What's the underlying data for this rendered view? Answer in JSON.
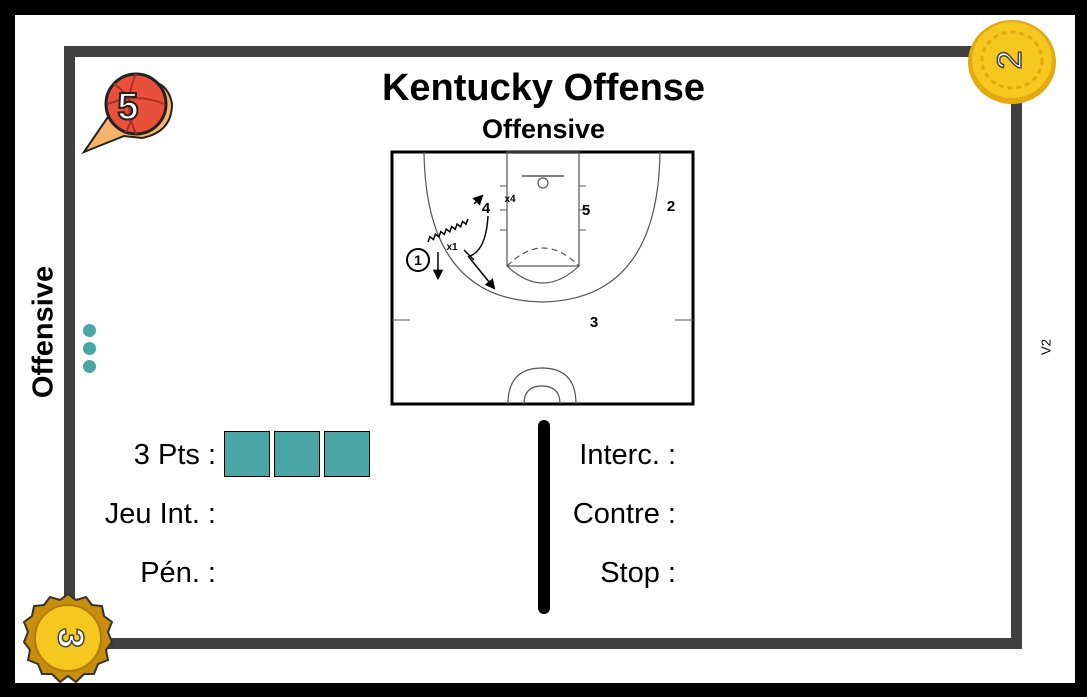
{
  "card": {
    "title": "Kentucky Offense",
    "subtitle": "Offensive",
    "side_label": "Offensive",
    "version": "V2",
    "speed_badge": "5",
    "top_coin": "2",
    "bottom_coin": "3"
  },
  "court_labels": {
    "p1": "1",
    "p2": "2",
    "p3": "3",
    "p4": "4",
    "p5": "5",
    "x1": "x1",
    "x4": "x4"
  },
  "stats_left": {
    "three_pts": "3 Pts :",
    "jeu_int": "Jeu Int. :",
    "pen": "Pén. :",
    "three_pts_boxes": 3
  },
  "stats_right": {
    "interc": "Interc. :",
    "contre": "Contre :",
    "stop": "Stop :"
  },
  "colors": {
    "teal": "#4aa5a5",
    "frame": "#404040",
    "gold": "#f2c21b",
    "badge_orange": "#f0a05a",
    "badge_red": "#e8503a"
  }
}
